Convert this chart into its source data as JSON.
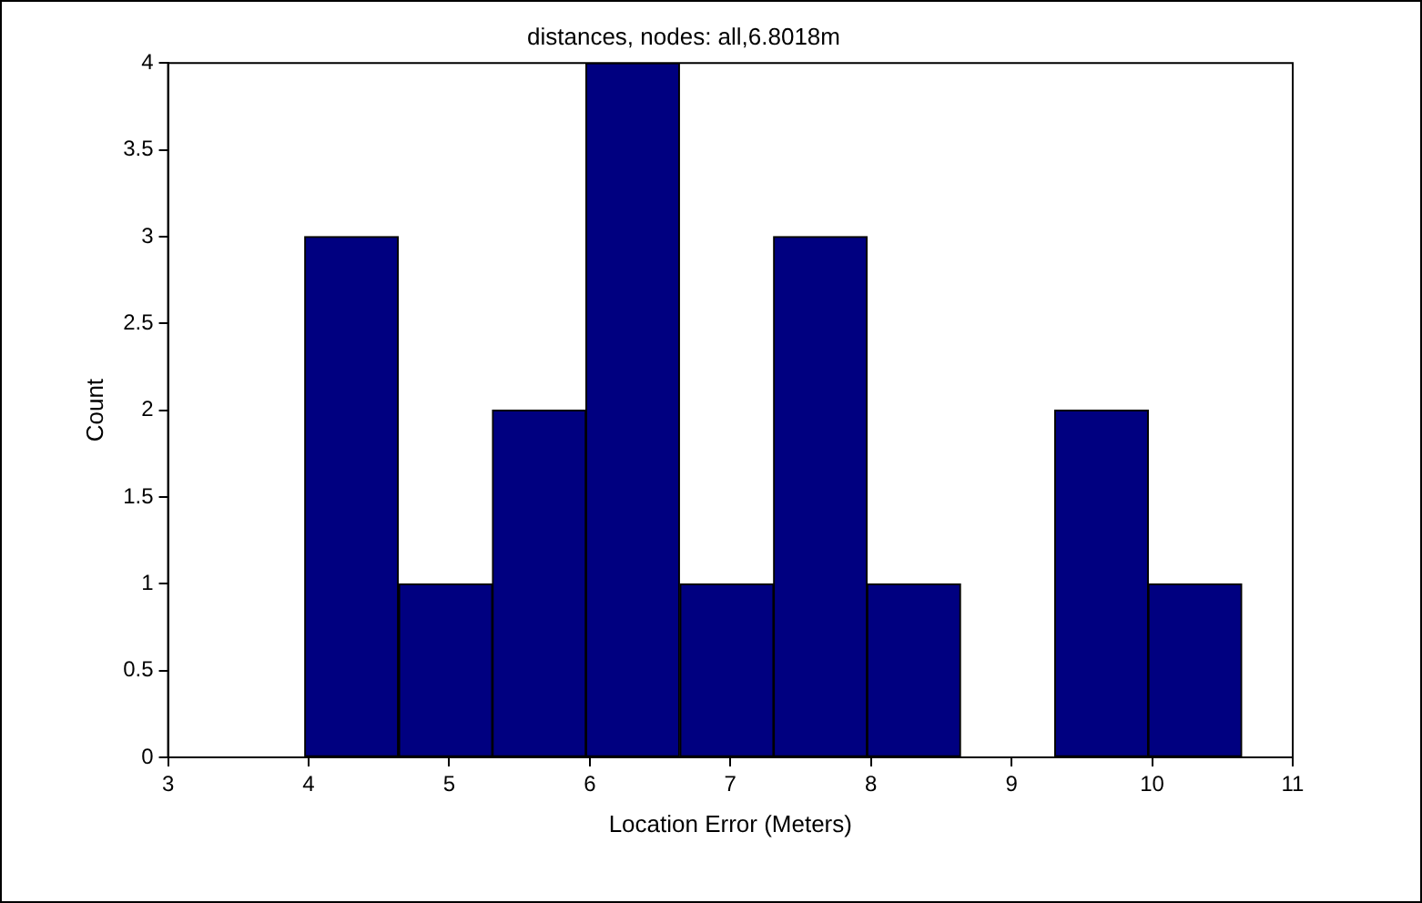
{
  "chart_data": {
    "type": "histogram",
    "title": "distances, nodes: all,6.8018m",
    "xlabel": "Location Error (Meters)",
    "ylabel": "Count",
    "bins": [
      3.97,
      4.64,
      5.31,
      5.97,
      6.64,
      7.31,
      7.97,
      8.64,
      9.31,
      9.97,
      10.64
    ],
    "values": [
      3,
      1,
      2,
      4,
      1,
      3,
      1,
      0,
      2,
      1
    ],
    "color": "#000080",
    "xlim": [
      3,
      11
    ],
    "xticks": [
      3,
      4,
      5,
      6,
      7,
      8,
      9,
      10,
      11
    ],
    "ylim": [
      0,
      4
    ],
    "yticks": [
      0,
      0.5,
      1,
      1.5,
      2,
      2.5,
      3,
      3.5,
      4
    ],
    "grid": false,
    "legend": false
  }
}
